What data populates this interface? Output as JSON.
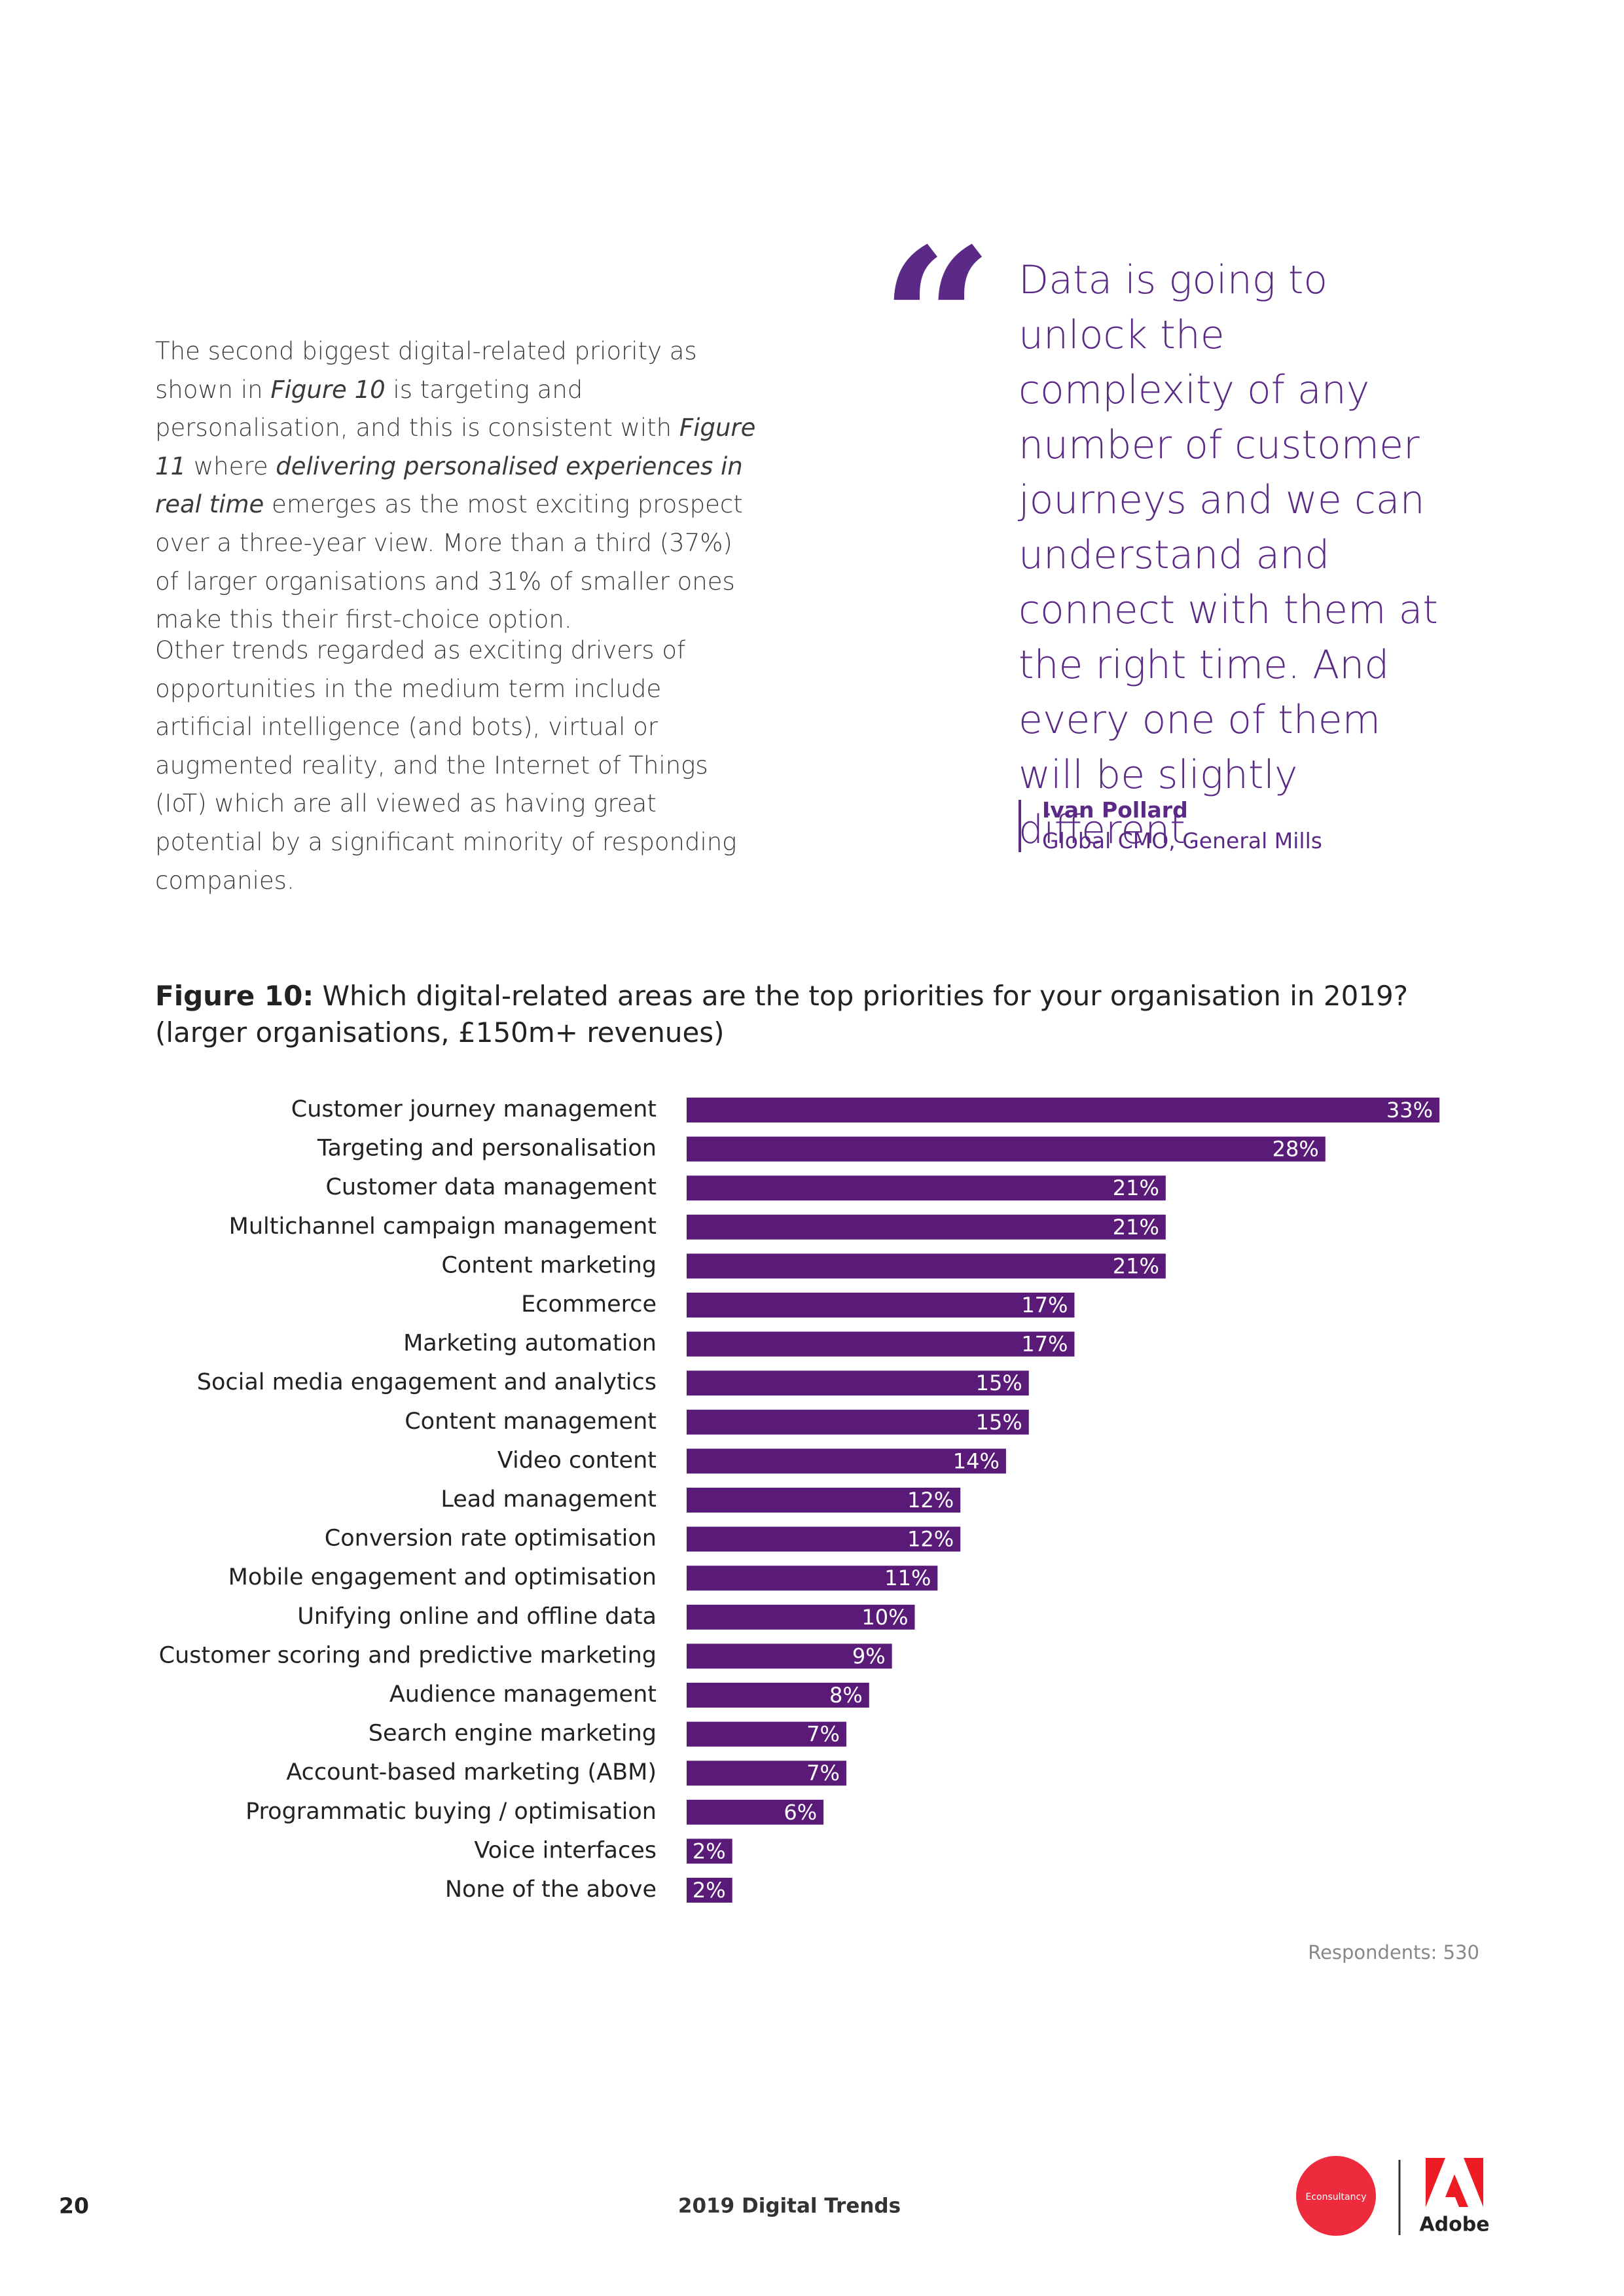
{
  "body": {
    "paragraphs": [
      [
        {
          "text": "The second biggest digital-related priority as shown in ",
          "italic": false
        },
        {
          "text": "Figure 10",
          "italic": true
        },
        {
          "text": " is targeting and personalisation, and this is consistent with ",
          "italic": false
        },
        {
          "text": "Figure 11",
          "italic": true
        },
        {
          "text": " where ",
          "italic": false
        },
        {
          "text": "delivering personalised experiences in real time",
          "italic": true
        },
        {
          "text": " emerges as the most exciting prospect over a three-year view. More than a third (37%) of larger organisations and 31% of smaller ones make this their first-choice option.",
          "italic": false
        }
      ],
      [
        {
          "text": "Other trends regarded as exciting drivers of opportunities in the medium term include artificial intelligence (and bots), virtual or augmented reality, and the Internet of Things (IoT) which are all viewed as having great potential by a significant minority of responding companies.",
          "italic": false
        }
      ]
    ]
  },
  "quote": {
    "mark": "“",
    "text": "Data is going to unlock the complexity of any number of customer journeys and we can understand and connect with them at the right time. And every one of them will be slightly different.",
    "author": "Ivan Pollard",
    "role": "Global CMO, General Mills"
  },
  "chart_data": {
    "type": "hbar",
    "title_label": "Figure 10:",
    "title": "Which digital-related areas are the top priorities for your organisation in 2019?",
    "subtitle": "(larger organisations, £150m+ revenues)",
    "categories": [
      "Customer journey management",
      "Targeting and personalisation",
      "Customer data management",
      "Multichannel campaign management",
      "Content marketing",
      "Ecommerce",
      "Marketing automation",
      "Social media engagement and analytics",
      "Content management",
      "Video content",
      "Lead management",
      "Conversion rate optimisation",
      "Mobile engagement and optimisation",
      "Unifying online and offline data",
      "Customer scoring and predictive marketing",
      "Audience management",
      "Search engine marketing",
      "Account-based marketing (ABM)",
      "Programmatic buying / optimisation",
      "Voice interfaces",
      "None of the above"
    ],
    "values": [
      33,
      28,
      21,
      21,
      21,
      17,
      17,
      15,
      15,
      14,
      12,
      12,
      11,
      10,
      9,
      8,
      7,
      7,
      6,
      2,
      2
    ],
    "value_labels": [
      "33%",
      "28%",
      "21%",
      "21%",
      "21%",
      "17%",
      "17%",
      "15%",
      "15%",
      "14%",
      "12%",
      "12%",
      "11%",
      "10%",
      "9%",
      "8%",
      "7%",
      "7%",
      "6%",
      "2%",
      "2%"
    ],
    "color": "#5a1a78",
    "note": "Respondents: 530"
  },
  "footer": {
    "page": "20",
    "title": "2019 Digital Trends",
    "logo_left": "Econsultancy",
    "logo_right": "Adobe"
  }
}
